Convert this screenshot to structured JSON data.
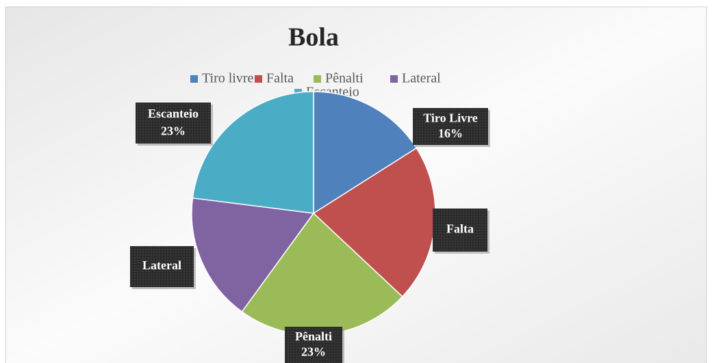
{
  "chart_data": {
    "type": "pie",
    "title": "Bola",
    "categories": [
      "Tiro livre",
      "Falta",
      "Pênalti",
      "Lateral",
      "Escanteio"
    ],
    "values": [
      16,
      21,
      23,
      17,
      23
    ],
    "label_names": [
      "Tiro Livre",
      "Falta",
      "Pênalti",
      "Lateral",
      "Escanteio"
    ],
    "value_labels": [
      "16%",
      null,
      "23%",
      null,
      "23%"
    ],
    "colors": [
      "#4f81bd",
      "#c0504d",
      "#9bbb59",
      "#8064a2",
      "#4bacc6"
    ],
    "legend": "top"
  }
}
